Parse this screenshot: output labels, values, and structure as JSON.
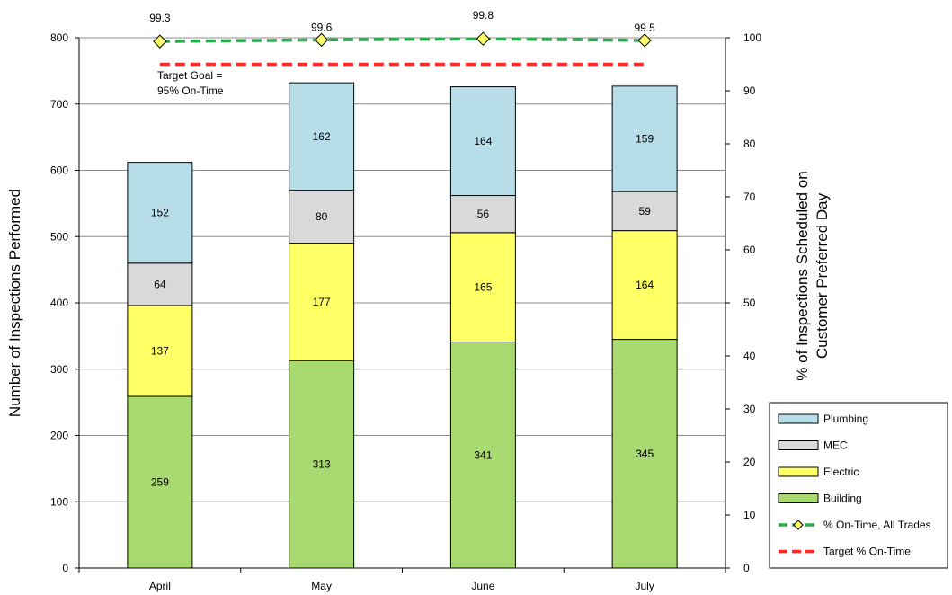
{
  "chart_data": {
    "type": "bar",
    "stacked": true,
    "categories": [
      "April",
      "May",
      "June",
      "July"
    ],
    "series": [
      {
        "name": "Building",
        "values": [
          259,
          313,
          341,
          345
        ],
        "color": "#a9d971"
      },
      {
        "name": "Electric",
        "values": [
          137,
          177,
          165,
          164
        ],
        "color": "#ffff66"
      },
      {
        "name": "MEC",
        "values": [
          64,
          80,
          56,
          59
        ],
        "color": "#d9d9d9"
      },
      {
        "name": "Plumbing",
        "values": [
          152,
          162,
          164,
          159
        ],
        "color": "#b7dde8"
      }
    ],
    "line_series": [
      {
        "name": "% On-Time, All Trades",
        "values": [
          99.3,
          99.6,
          99.8,
          99.5
        ],
        "color": "#2bab4f",
        "marker": "diamond",
        "marker_color": "#ffff66",
        "axis": "right"
      },
      {
        "name": "Target % On-Time",
        "values": [
          95,
          95,
          95,
          95
        ],
        "color": "#ff2b2b",
        "axis": "right"
      }
    ],
    "annotation": "Target Goal =\n95% On-Time",
    "ylabel": "Number of Inspections Performed",
    "y2label": "% of Inspections Scheduled on\nCustomer Preferred Day",
    "ylim": [
      0,
      800
    ],
    "y2lim": [
      0,
      100
    ],
    "yticks": [
      0,
      100,
      200,
      300,
      400,
      500,
      600,
      700,
      800
    ],
    "y2ticks": [
      0,
      10,
      20,
      30,
      40,
      50,
      60,
      70,
      80,
      90,
      100
    ],
    "legend_order": [
      "Plumbing",
      "MEC",
      "Electric",
      "Building",
      "% On-Time, All Trades",
      "Target % On-Time"
    ],
    "legend_position": "bottom-right",
    "grid": "horizontal"
  }
}
